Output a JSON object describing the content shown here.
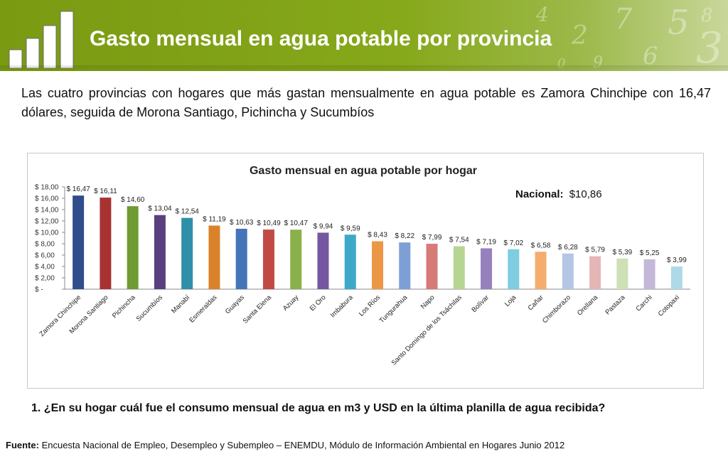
{
  "slide": {
    "title": "Gasto mensual en agua potable por provincia",
    "intro": "Las cuatro provincias con hogares que más gastan mensualmente en agua potable es Zamora Chinchipe con 16,47 dólares, seguida de  Morona Santiago, Pichincha y Sucumbíos",
    "question": "1. ¿En su hogar cuál fue el consumo mensual de agua en m3 y USD en la última planilla de agua recibida?",
    "source_label": "Fuente:",
    "source_text": " Encuesta Nacional de Empleo, Desempleo y Subempleo – ENEMDU, Módulo de Información Ambiental en Hogares Junio 2012"
  },
  "chart_data": {
    "type": "bar",
    "title": "Gasto mensual en agua potable por hogar",
    "national_label": "Nacional:",
    "national_value": "$10,86",
    "ylim": [
      0,
      18
    ],
    "yticks": [
      "$ -",
      "$ 2,00",
      "$ 4,00",
      "$ 6,00",
      "$ 8,00",
      "$ 10,00",
      "$ 12,00",
      "$ 14,00",
      "$ 16,00",
      "$ 18,00"
    ],
    "categories": [
      "Zamora Chinchipe",
      "Morona Santiago",
      "Pichincha",
      "Sucumbíos",
      "Manabí",
      "Esmeraldas",
      "Guayas",
      "Santa Elena",
      "Azuay",
      "El Oro",
      "Imbabura",
      "Los Ríos",
      "Tungurahua",
      "Napo",
      "Santo Domingo de los Tsáchilas",
      "Bolívar",
      "Loja",
      "Cañar",
      "Chimborazo",
      "Orellana",
      "Pastaza",
      "Carchi",
      "Cotopaxi"
    ],
    "values": [
      16.47,
      16.11,
      14.6,
      13.04,
      12.54,
      11.19,
      10.63,
      10.49,
      10.47,
      9.94,
      9.59,
      8.43,
      8.22,
      7.99,
      7.54,
      7.19,
      7.02,
      6.58,
      6.28,
      5.79,
      5.39,
      5.25,
      3.99
    ],
    "labels": [
      "$ 16,47",
      "$ 16,11",
      "$ 14,60",
      "$ 13,04",
      "$ 12,54",
      "$ 11,19",
      "$ 10,63",
      "$ 10,49",
      "$ 10,47",
      "$ 9,94",
      "$ 9,59",
      "$ 8,43",
      "$ 8,22",
      "$ 7,99",
      "$ 7,54",
      "$ 7,19",
      "$ 7,02",
      "$ 6,58",
      "$ 6,28",
      "$ 5,79",
      "$ 5,39",
      "$ 5,25",
      "$ 3,99"
    ],
    "colors": [
      "#2e4d8a",
      "#a83232",
      "#6f9a34",
      "#5a3f80",
      "#2f8fa8",
      "#d9822b",
      "#4674b8",
      "#c24a45",
      "#8ab04a",
      "#7457a0",
      "#3da8c8",
      "#ec9746",
      "#7d9fd6",
      "#d77b78",
      "#b7d592",
      "#9581be",
      "#7fcde0",
      "#f4ad6e",
      "#b4c6e4",
      "#e4b6b5",
      "#cde0b6",
      "#c4b8d8",
      "#aedae8"
    ]
  }
}
